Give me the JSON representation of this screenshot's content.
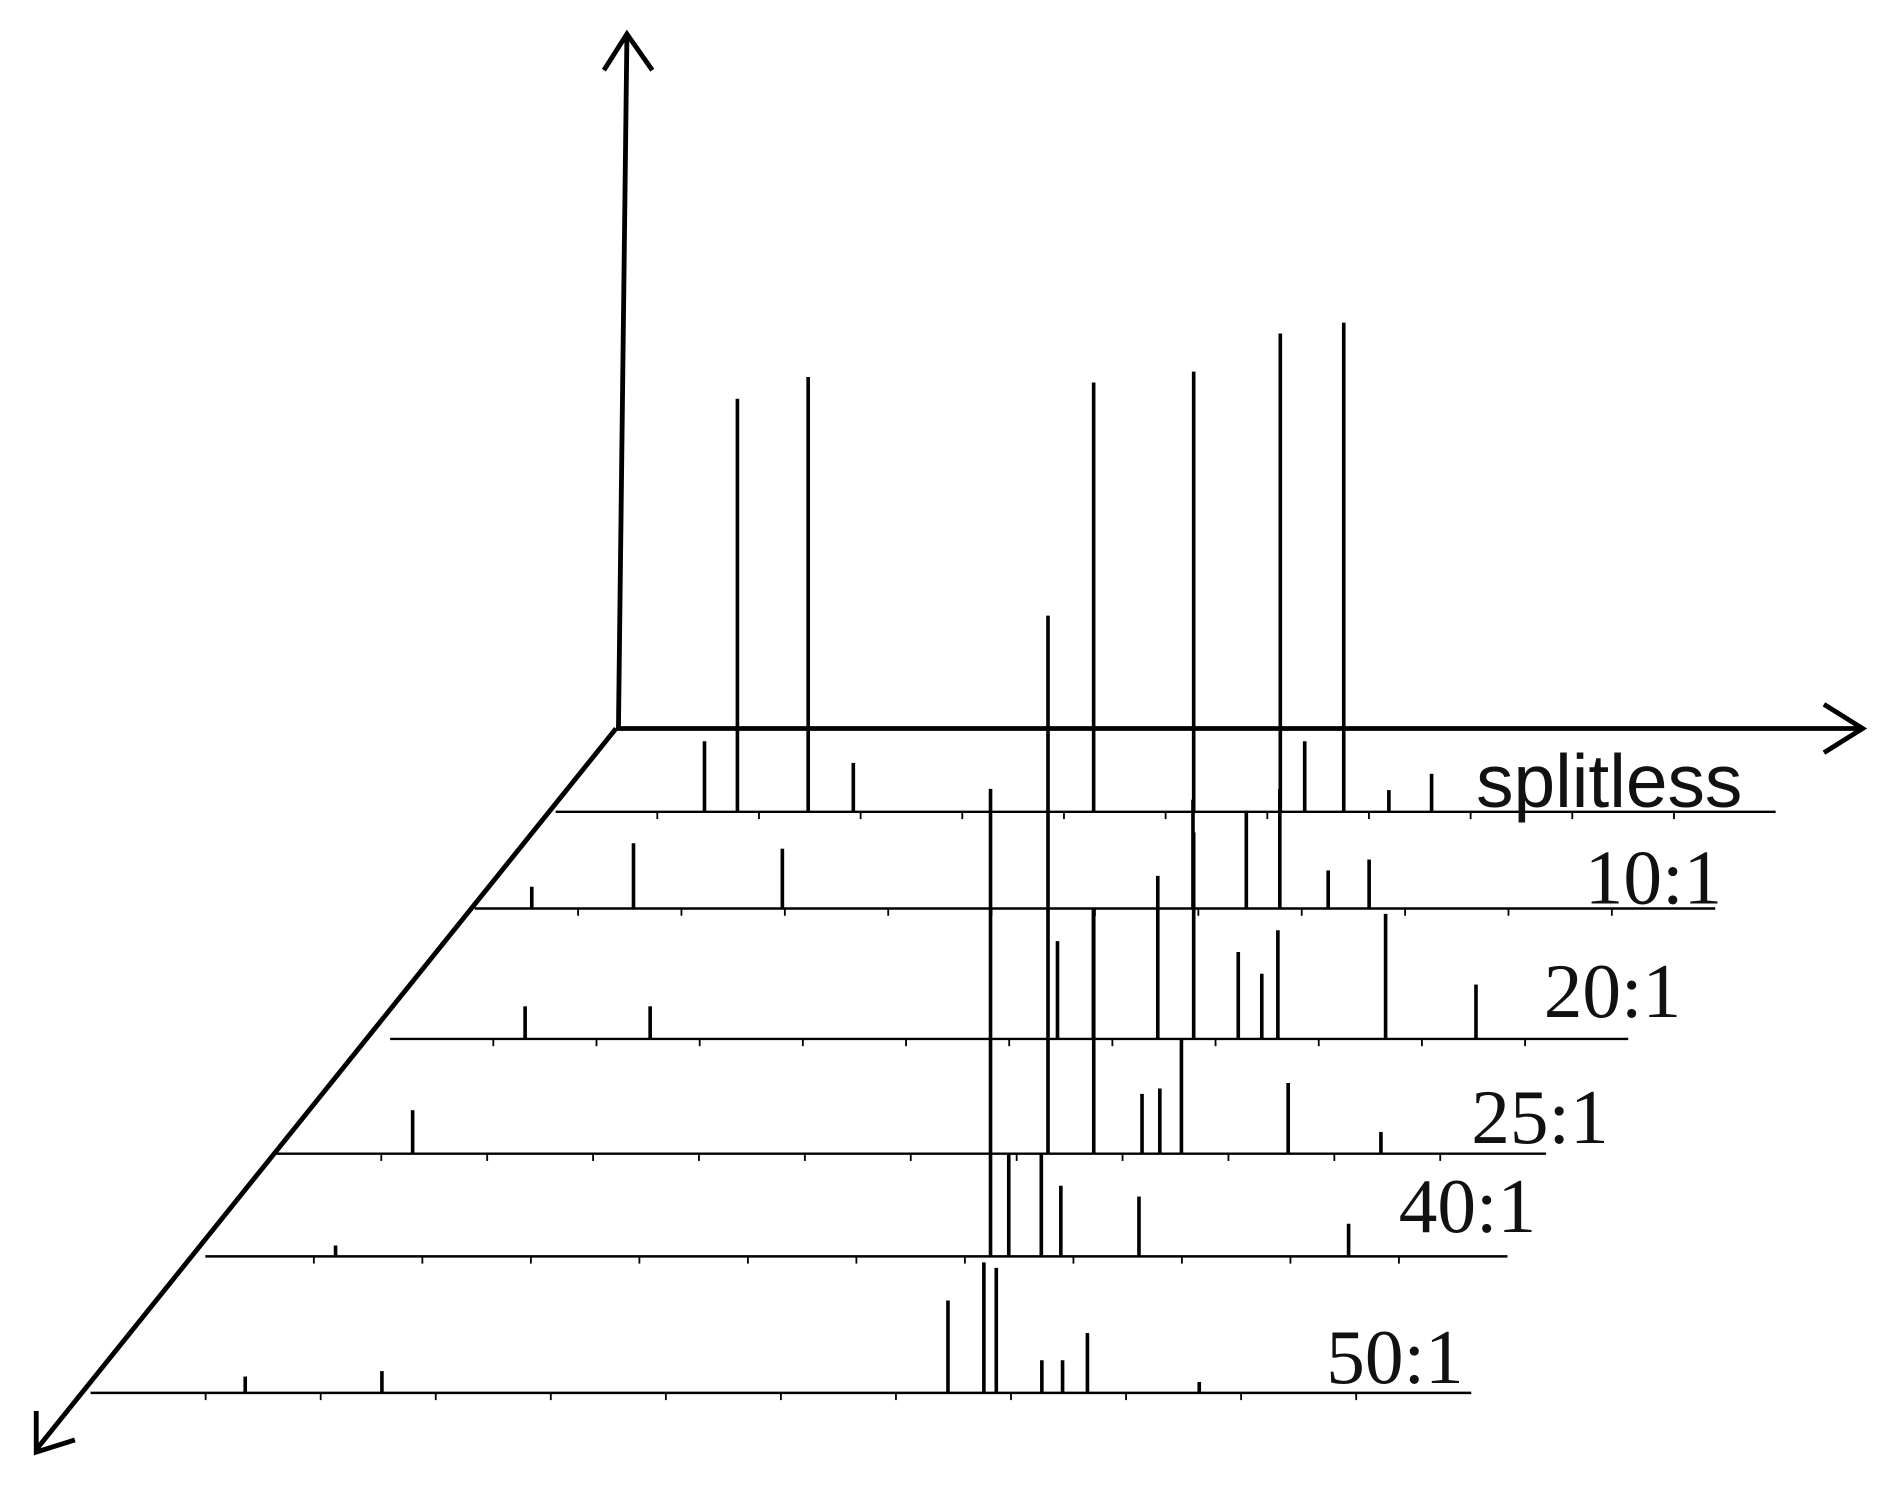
{
  "chart_data": {
    "type": "waterfall",
    "color": "#000000",
    "xlim": [
      0,
      100
    ],
    "ylim": [
      0,
      100
    ],
    "series": [
      {
        "name": "splitless",
        "x": [
          12.2,
          14.9,
          20.7,
          24.4,
          44.1,
          52.3,
          59.4,
          61.4,
          64.6,
          68.3,
          71.8
        ],
        "values": [
          13,
          76,
          80,
          9,
          79,
          81,
          88,
          13,
          90,
          4,
          7
        ]
      },
      {
        "name": "10:1",
        "x": [
          4.6,
          12.8,
          24.8,
          57.9,
          62.2,
          64.9,
          68.8,
          72.1
        ],
        "values": [
          4,
          12,
          11,
          20,
          18,
          22,
          7,
          9
        ]
      },
      {
        "name": "20:1",
        "x": [
          10.9,
          21,
          53.9,
          56.8,
          62,
          64.9,
          68.5,
          70.4,
          71.7,
          80.4,
          87.7
        ],
        "values": [
          6,
          6,
          18,
          24,
          30,
          38,
          16,
          12,
          20,
          23,
          10
        ]
      },
      {
        "name": "25:1",
        "x": [
          10.8,
          60.8,
          64.4,
          68.2,
          69.6,
          71.3,
          79.7,
          87
        ],
        "values": [
          8,
          99,
          44,
          11,
          12,
          21,
          13,
          4
        ]
      },
      {
        "name": "40:1",
        "x": [
          10,
          60.3,
          61.7,
          64.2,
          65.7,
          71.7,
          87.8
        ],
        "values": [
          2,
          86,
          19,
          19,
          13,
          11,
          6
        ]
      },
      {
        "name": "50:1",
        "x": [
          11.2,
          21.1,
          62.1,
          64.7,
          65.6,
          68.9,
          70.4,
          72.2,
          80.3
        ],
        "values": [
          3,
          4,
          17,
          24,
          23,
          6,
          6,
          11,
          2
        ]
      }
    ]
  }
}
